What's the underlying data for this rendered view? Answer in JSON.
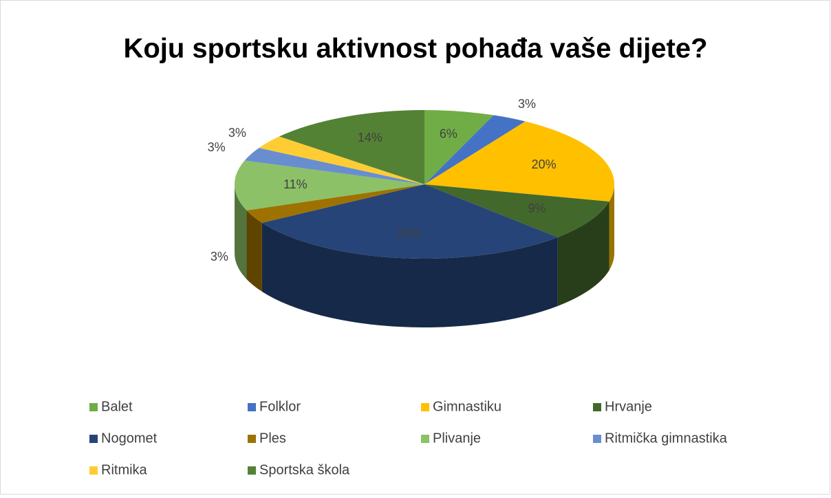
{
  "chart_data": {
    "type": "pie",
    "title": "Koju sportsku aktivnost pohađa vaše dijete?",
    "categories": [
      "Balet",
      "Folklor",
      "Gimnastiku",
      "Hrvanje",
      "Nogomet",
      "Ples",
      "Plivanje",
      "Ritmička gimnastika",
      "Ritmika",
      "Sportska škola"
    ],
    "values": [
      6,
      3,
      20,
      9,
      29,
      3,
      11,
      3,
      3,
      14
    ],
    "value_labels": [
      "6%",
      "3%",
      "20%",
      "9%",
      "29%",
      "3%",
      "11%",
      "3%",
      "3%",
      "14%"
    ],
    "colors": [
      "#70ad47",
      "#4472c4",
      "#ffc000",
      "#43682b",
      "#264478",
      "#9e7200",
      "#8cc168",
      "#698ed0",
      "#ffcd33",
      "#548235"
    ],
    "legend": "bottom"
  }
}
